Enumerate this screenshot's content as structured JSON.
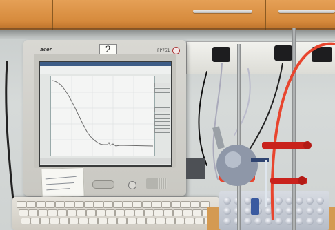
{
  "scene": "photo",
  "monitor": {
    "brand_logo": "acer",
    "model": "FP751",
    "sticker_number": "2"
  },
  "colors": {
    "cabinet": "#d68a3c",
    "tubing": "#e8452e",
    "clamp": "#c9221c",
    "flask_mantle": "#8e97a8",
    "screen_bg": "#e3e6e4"
  },
  "icon_names": [
    "power-icon",
    "menu-button-icon"
  ]
}
